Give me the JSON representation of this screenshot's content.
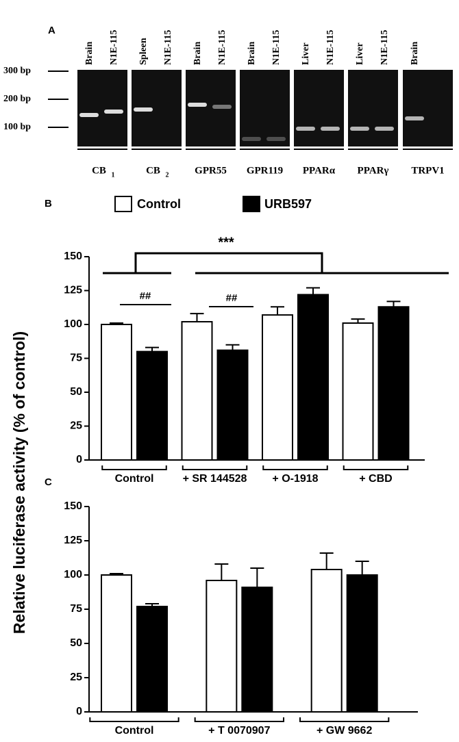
{
  "gel": {
    "label": "A",
    "ladder": [
      "300 bp",
      "200 bp",
      "100 bp"
    ],
    "lanes": [
      {
        "name": "CB",
        "sub": "1",
        "samples": [
          "Brain",
          "N1E-115"
        ]
      },
      {
        "name": "CB",
        "sub": "2",
        "samples": [
          "Spleen",
          "N1E-115"
        ]
      },
      {
        "name": "GPR55",
        "samples": [
          "Brain",
          "N1E-115"
        ]
      },
      {
        "name": "GPR119",
        "samples": [
          "Brain",
          "N1E-115"
        ]
      },
      {
        "name": "PPARα",
        "samples": [
          "Liver",
          "N1E-115"
        ]
      },
      {
        "name": "PPARγ",
        "samples": [
          "Liver",
          "N1E-115"
        ]
      },
      {
        "name": "TRPV1",
        "samples": [
          "Brain"
        ]
      }
    ]
  },
  "chart_data": [
    {
      "type": "bar",
      "label": "B",
      "ylabel": "Relative luciferase activity (% of control)",
      "categories": [
        "Control",
        "+ SR 144528",
        "+ O-1918",
        "+ CBD"
      ],
      "series": [
        {
          "name": "Control",
          "color": "#ffffff",
          "values": [
            100,
            102,
            107,
            101
          ],
          "errors": [
            1,
            6,
            6,
            3
          ]
        },
        {
          "name": "URB597",
          "color": "#000000",
          "values": [
            80,
            81,
            122,
            113
          ],
          "errors": [
            3,
            4,
            5,
            4
          ]
        }
      ],
      "ylim": [
        0,
        150
      ],
      "yticks": [
        0,
        25,
        50,
        75,
        100,
        125,
        150
      ],
      "annotations": [
        "##",
        "##",
        "***"
      ]
    },
    {
      "type": "bar",
      "label": "C",
      "categories": [
        "Control",
        "+ T 0070907",
        "+ GW 9662"
      ],
      "series": [
        {
          "color": "#ffffff",
          "values": [
            100,
            96,
            104
          ],
          "errors": [
            1,
            12,
            12
          ]
        },
        {
          "color": "#000000",
          "values": [
            77,
            91,
            100
          ],
          "errors": [
            2,
            14,
            10
          ]
        }
      ],
      "ylim": [
        0,
        150
      ],
      "yticks": [
        0,
        25,
        50,
        75,
        100,
        125,
        150
      ]
    }
  ]
}
